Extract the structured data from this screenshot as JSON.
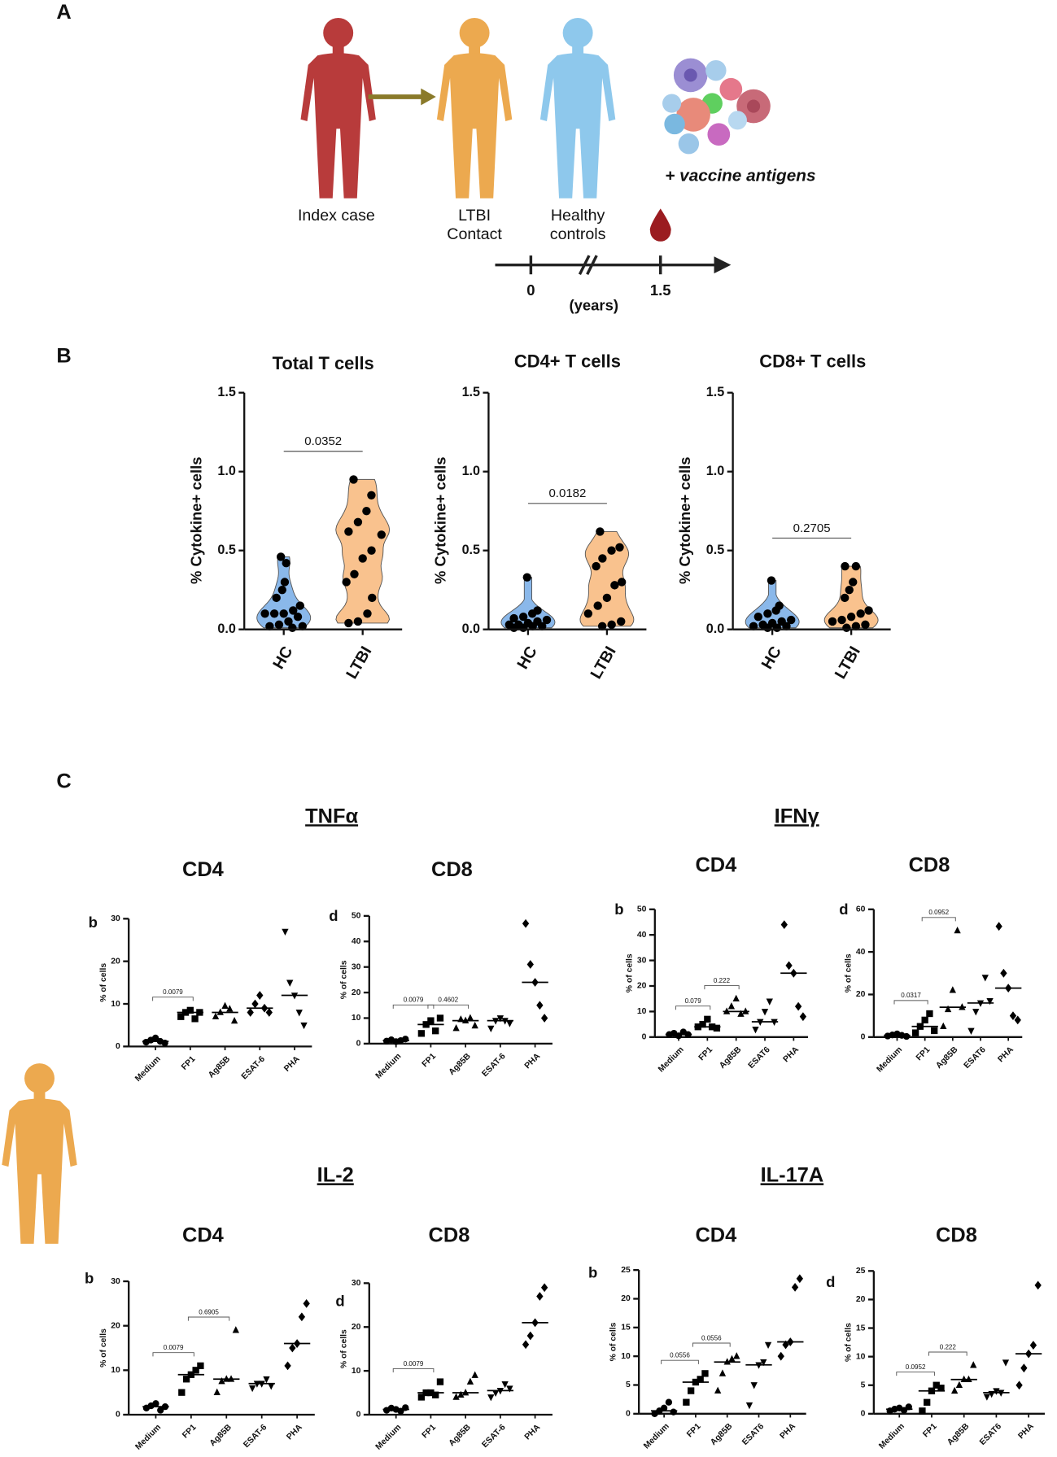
{
  "panel_a": {
    "label": "A",
    "people": [
      [
        "Index case"
      ],
      [
        "LTBI",
        "Contact"
      ],
      [
        "Healthy",
        "controls"
      ]
    ],
    "treatment": "+ vaccine antigens",
    "timeline": {
      "ticks": [
        "0",
        "1.5"
      ],
      "unit": "(years)"
    }
  },
  "panel_b": {
    "label": "B"
  },
  "panel_c": {
    "label": "C",
    "cytokines": [
      "TNFα",
      "IFNγ",
      "IL-2",
      "IL-17A"
    ]
  },
  "chart_data": [
    {
      "type": "violin",
      "title": "Total T cells",
      "ylabel": "% Cytokine+ cells",
      "categories": [
        "HC",
        "LTBI"
      ],
      "ylim": [
        0,
        1.5
      ],
      "yticks": [
        {
          "value": 0,
          "label": "0.0"
        },
        0.5,
        {
          "value": 1,
          "label": "1.0"
        },
        1.5
      ],
      "series": [
        {
          "color": "#8ab8ea",
          "values": [
            0.46,
            0.42,
            0.3,
            0.25,
            0.2,
            0.15,
            0.12,
            0.1,
            0.1,
            0.1,
            0.08,
            0.05,
            0.03,
            0.02,
            0.02,
            0.01
          ]
        },
        {
          "color": "#f9c28e",
          "values": [
            0.95,
            0.85,
            0.75,
            0.68,
            0.62,
            0.6,
            0.5,
            0.45,
            0.35,
            0.3,
            0.2,
            0.1,
            0.05,
            0.04
          ]
        }
      ],
      "comparison": {
        "groups": [
          0,
          1
        ],
        "label": "0.0352"
      }
    },
    {
      "type": "violin",
      "title": "CD4+  T cells",
      "ylabel": "% Cytokine+ cells",
      "categories": [
        "HC",
        "LTBI"
      ],
      "ylim": [
        0,
        1.5
      ],
      "yticks": [
        {
          "value": 0,
          "label": "0.0"
        },
        0.5,
        {
          "value": 1,
          "label": "1.0"
        },
        1.5
      ],
      "series": [
        {
          "color": "#8ab8ea",
          "values": [
            0.33,
            0.12,
            0.1,
            0.08,
            0.07,
            0.06,
            0.05,
            0.04,
            0.03,
            0.03,
            0.02,
            0.02,
            0.01,
            0.01
          ]
        },
        {
          "color": "#f9c28e",
          "values": [
            0.62,
            0.52,
            0.5,
            0.45,
            0.4,
            0.3,
            0.28,
            0.2,
            0.15,
            0.1,
            0.05,
            0.03,
            0.02
          ]
        }
      ],
      "comparison": {
        "groups": [
          0,
          1
        ],
        "label": "0.0182"
      }
    },
    {
      "type": "violin",
      "title": "CD8+ T cells",
      "ylabel": "% Cytokine+ cells",
      "categories": [
        "HC",
        "LTBI"
      ],
      "ylim": [
        0,
        1.5
      ],
      "yticks": [
        {
          "value": 0,
          "label": "0.0"
        },
        0.5,
        {
          "value": 1,
          "label": "1.0"
        },
        1.5
      ],
      "series": [
        {
          "color": "#8ab8ea",
          "values": [
            0.31,
            0.15,
            0.12,
            0.1,
            0.08,
            0.06,
            0.05,
            0.04,
            0.03,
            0.02,
            0.02,
            0.01,
            0.01
          ]
        },
        {
          "color": "#f9c28e",
          "values": [
            0.4,
            0.4,
            0.3,
            0.25,
            0.2,
            0.12,
            0.1,
            0.08,
            0.06,
            0.05,
            0.03,
            0.02,
            0.01
          ]
        }
      ],
      "comparison": {
        "groups": [
          0,
          1
        ],
        "label": "0.2705"
      }
    },
    {
      "type": "dotplot",
      "panel": "b",
      "title": "CD4",
      "ylabel": "% of cells",
      "categories": [
        "Medium",
        "FP1",
        "Ag85B",
        "ESAT-6",
        "PHA"
      ],
      "markers": [
        "circle",
        "square",
        "triangle",
        "diamond",
        "triangle-down"
      ],
      "color": "#000000",
      "ylim": [
        0,
        30
      ],
      "yticks": [
        0,
        10,
        20,
        30
      ],
      "values": [
        [
          1,
          1.5,
          2,
          1.2,
          0.8
        ],
        [
          7,
          8,
          8.5,
          6.5,
          8
        ],
        [
          7,
          8,
          9.5,
          8.8,
          6
        ],
        [
          8,
          10,
          12,
          9,
          8
        ],
        [
          27,
          15,
          12,
          8,
          5
        ]
      ],
      "medians": [
        1.2,
        8,
        8,
        9,
        12
      ],
      "comparisons": [
        {
          "groups": [
            0,
            1
          ],
          "label": "0.0079"
        }
      ]
    },
    {
      "type": "dotplot",
      "panel": "d",
      "title": "CD8",
      "ylabel": "% of cells",
      "categories": [
        "Medium",
        "FP1",
        "Ag85B",
        "ESAT-6",
        "PHA"
      ],
      "markers": [
        "circle",
        "square",
        "triangle",
        "triangle-down",
        "diamond"
      ],
      "color": "#000000",
      "ylim": [
        0,
        50
      ],
      "yticks": [
        0,
        10,
        20,
        30,
        40,
        50
      ],
      "values": [
        [
          1,
          1.5,
          0.8,
          1.2,
          1.8
        ],
        [
          4,
          7.5,
          9,
          5,
          10
        ],
        [
          6,
          9.5,
          9,
          10,
          7
        ],
        [
          6,
          9,
          10,
          9,
          8
        ],
        [
          47,
          31,
          24,
          15,
          10
        ]
      ],
      "medians": [
        1.2,
        7.5,
        9,
        9,
        24
      ],
      "comparisons": [
        {
          "groups": [
            0,
            1
          ],
          "label": "0.0079"
        },
        {
          "groups": [
            1,
            2
          ],
          "label": "0.4602"
        }
      ]
    },
    {
      "type": "dotplot",
      "panel": "b",
      "title": "CD4",
      "ylabel": "% of cells",
      "categories": [
        "Medium",
        "FP1",
        "Ag85B",
        "ESAT6",
        "PHA"
      ],
      "markers": [
        "circle",
        "square",
        "triangle",
        "triangle-down",
        "diamond"
      ],
      "color": "#000000",
      "ylim": [
        0,
        50
      ],
      "yticks": [
        0,
        10,
        20,
        30,
        40,
        50
      ],
      "values": [
        [
          1,
          1.5,
          0.5,
          2,
          1
        ],
        [
          4,
          5,
          7,
          4,
          3.5
        ],
        [
          10,
          12,
          15,
          9,
          10
        ],
        [
          3,
          6,
          10,
          14,
          6
        ],
        [
          44,
          28,
          25,
          12,
          8
        ]
      ],
      "medians": [
        1,
        4,
        10,
        6,
        25
      ],
      "comparisons": [
        {
          "groups": [
            0,
            1
          ],
          "label": "0.079"
        },
        {
          "groups": [
            1,
            2
          ],
          "label": "0.222"
        }
      ]
    },
    {
      "type": "dotplot",
      "panel": "d",
      "title": "CD8",
      "ylabel": "% of cells",
      "categories": [
        "Medium",
        "FP1",
        "Ag85B",
        "ESAT6",
        "PHA"
      ],
      "markers": [
        "circle",
        "square",
        "triangle",
        "triangle-down",
        "diamond"
      ],
      "color": "#000000",
      "ylim": [
        0,
        60
      ],
      "yticks": [
        0,
        20,
        40,
        60
      ],
      "values": [
        [
          0.5,
          1,
          1.5,
          0.8,
          0.3
        ],
        [
          2,
          5,
          8,
          11,
          3
        ],
        [
          5,
          13,
          22,
          50,
          14
        ],
        [
          3,
          12,
          16,
          28,
          17
        ],
        [
          52,
          30,
          23,
          10,
          8
        ]
      ],
      "medians": [
        0.8,
        5,
        14,
        16,
        23
      ],
      "comparisons": [
        {
          "groups": [
            0,
            1
          ],
          "label": "0.0317"
        },
        {
          "groups": [
            1,
            2
          ],
          "label": "0.0952"
        }
      ]
    },
    {
      "type": "dotplot",
      "panel": "b",
      "title": "CD4",
      "ylabel": "% of cells",
      "categories": [
        "Medium",
        "FP1",
        "Ag85B",
        "ESAT-6",
        "PHA"
      ],
      "markers": [
        "circle",
        "square",
        "triangle",
        "triangle-down",
        "diamond"
      ],
      "color": "#000000",
      "ylim": [
        0,
        30
      ],
      "yticks": [
        0,
        10,
        20,
        30
      ],
      "values": [
        [
          1.5,
          2,
          2.5,
          1,
          1.8
        ],
        [
          5,
          8,
          9,
          10,
          11
        ],
        [
          5,
          7.5,
          8,
          8,
          19
        ],
        [
          6,
          7,
          7,
          8,
          6.5
        ],
        [
          11,
          15,
          16,
          22,
          25
        ]
      ],
      "medians": [
        1.8,
        9,
        8,
        7,
        16
      ],
      "comparisons": [
        {
          "groups": [
            0,
            1
          ],
          "label": "0.0079"
        },
        {
          "groups": [
            1,
            2
          ],
          "label": "0.6905"
        }
      ]
    },
    {
      "type": "dotplot",
      "panel": "d",
      "title": "CD8",
      "ylabel": "% of cells",
      "categories": [
        "Medium",
        "FP1",
        "Ag85B",
        "ESAT-6",
        "PHA"
      ],
      "markers": [
        "circle",
        "square",
        "triangle",
        "triangle-down",
        "diamond"
      ],
      "color": "#000000",
      "ylim": [
        0,
        30
      ],
      "yticks": [
        0,
        10,
        20,
        30
      ],
      "values": [
        [
          1,
          1.5,
          1.2,
          0.8,
          1.6
        ],
        [
          4,
          5,
          5,
          4.5,
          7.5
        ],
        [
          4,
          4.5,
          5,
          7.5,
          9
        ],
        [
          4,
          5,
          5.5,
          7,
          6
        ],
        [
          16,
          18,
          21,
          27,
          29
        ]
      ],
      "medians": [
        1.2,
        5,
        5,
        5.5,
        21
      ],
      "comparisons": [
        {
          "groups": [
            0,
            1
          ],
          "label": "0.0079"
        }
      ]
    },
    {
      "type": "dotplot",
      "panel": "b",
      "title": "CD4",
      "ylabel": "% of cells",
      "categories": [
        "Medium",
        "FP1",
        "Ag85B",
        "ESAT6",
        "PHA"
      ],
      "markers": [
        "circle",
        "square",
        "triangle",
        "triangle-down",
        "diamond"
      ],
      "color": "#000000",
      "ylim": [
        0,
        25
      ],
      "yticks": [
        0,
        5,
        10,
        15,
        20,
        25
      ],
      "values": [
        [
          0,
          0.5,
          1,
          2,
          0.3
        ],
        [
          2,
          4,
          5.5,
          6,
          7
        ],
        [
          4,
          7,
          9,
          9.5,
          10
        ],
        [
          1.5,
          5,
          8.5,
          9,
          12
        ],
        [
          10,
          12,
          12.5,
          22,
          23.5
        ]
      ],
      "medians": [
        0.5,
        5.5,
        9,
        8.5,
        12.5
      ],
      "comparisons": [
        {
          "groups": [
            0,
            1
          ],
          "label": "0.0556"
        },
        {
          "groups": [
            1,
            2
          ],
          "label": "0.0556"
        }
      ]
    },
    {
      "type": "dotplot",
      "panel": "d",
      "title": "CD8",
      "ylabel": "% of cells",
      "categories": [
        "Medium",
        "FP1",
        "Ag85B",
        "ESAT6",
        "PHA"
      ],
      "markers": [
        "circle",
        "square",
        "triangle",
        "triangle-down",
        "diamond"
      ],
      "color": "#000000",
      "ylim": [
        0,
        25
      ],
      "yticks": [
        0,
        5,
        10,
        15,
        20,
        25
      ],
      "values": [
        [
          0.5,
          0.8,
          1,
          0.6,
          1.2
        ],
        [
          0.5,
          2,
          4,
          5,
          4.5
        ],
        [
          4,
          5,
          6,
          6,
          8.5
        ],
        [
          3,
          3.5,
          4,
          3.7,
          9
        ],
        [
          5,
          8,
          10.5,
          12,
          22.5
        ]
      ],
      "medians": [
        0.8,
        4,
        6,
        3.7,
        10.5
      ],
      "comparisons": [
        {
          "groups": [
            0,
            1
          ],
          "label": "0.0952"
        },
        {
          "groups": [
            1,
            2
          ],
          "label": "0.222"
        }
      ]
    }
  ]
}
